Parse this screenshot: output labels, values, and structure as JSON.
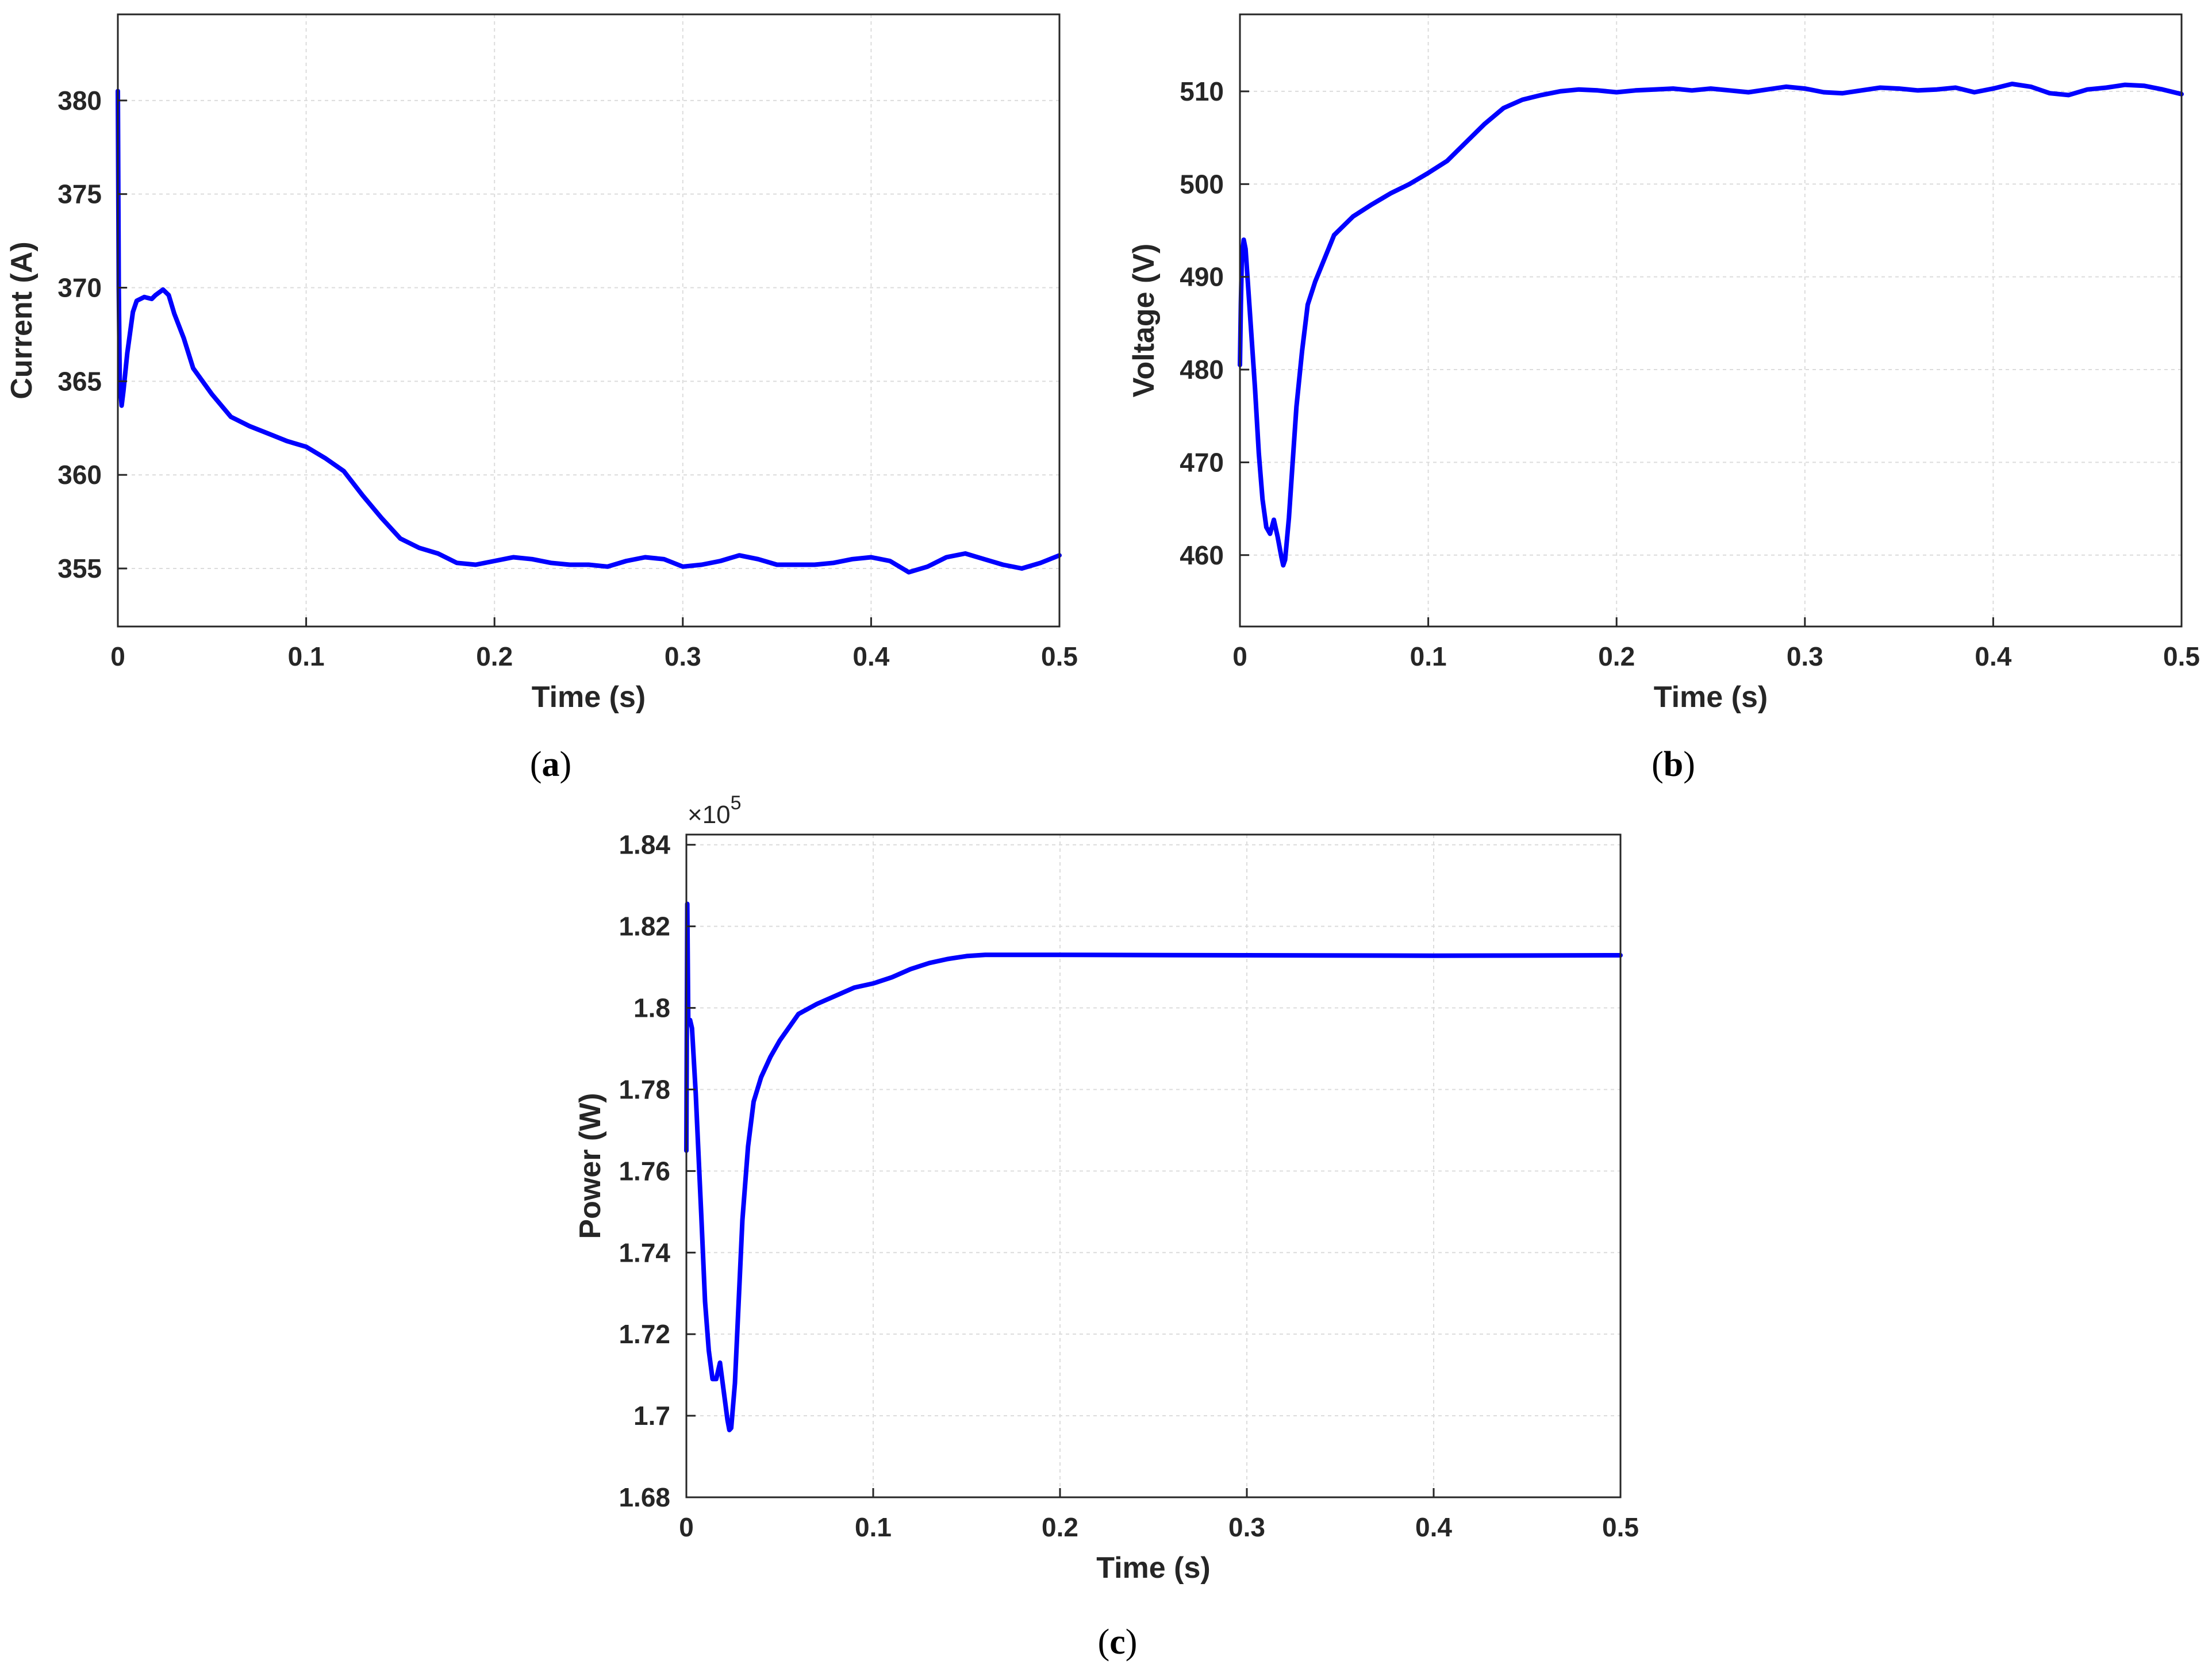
{
  "colors": {
    "line": "#0000FF",
    "axis": "#262626",
    "grid": "#DCDCDC"
  },
  "chart_data": [
    {
      "type": "line",
      "caption": {
        "open": "(",
        "letter": "a",
        "close": ")"
      },
      "xlabel": "Time (s)",
      "ylabel": "Current (A)",
      "xlim": [
        0,
        0.5
      ],
      "ylim": [
        351.9,
        384.6
      ],
      "grid": true,
      "xticks": [
        0,
        0.1,
        0.2,
        0.3,
        0.4,
        0.5
      ],
      "xtick_labels": [
        "0",
        "0.1",
        "0.2",
        "0.3",
        "0.4",
        "0.5"
      ],
      "yticks": [
        355,
        360,
        365,
        370,
        375,
        380
      ],
      "ytick_labels": [
        "355",
        "360",
        "365",
        "370",
        "375",
        "380"
      ],
      "series": [
        {
          "x": [
            0,
            0.0005,
            0.001,
            0.002,
            0.003,
            0.005,
            0.008,
            0.01,
            0.014,
            0.018,
            0.02,
            0.024,
            0.027,
            0.03,
            0.035,
            0.04,
            0.05,
            0.06,
            0.07,
            0.08,
            0.09,
            0.1,
            0.11,
            0.12,
            0.13,
            0.14,
            0.15,
            0.16,
            0.17,
            0.18,
            0.19,
            0.2,
            0.21,
            0.22,
            0.23,
            0.24,
            0.25,
            0.26,
            0.27,
            0.28,
            0.29,
            0.3,
            0.31,
            0.32,
            0.33,
            0.34,
            0.35,
            0.36,
            0.37,
            0.38,
            0.39,
            0.4,
            0.41,
            0.42,
            0.43,
            0.44,
            0.45,
            0.46,
            0.47,
            0.48,
            0.49,
            0.5
          ],
          "y": [
            380.5,
            370,
            365,
            363.7,
            364.5,
            366.5,
            368.7,
            369.3,
            369.5,
            369.4,
            369.6,
            369.9,
            369.6,
            368.6,
            367.3,
            365.7,
            364.3,
            363.1,
            362.6,
            362.2,
            361.8,
            361.5,
            360.9,
            360.2,
            358.9,
            357.7,
            356.6,
            356.1,
            355.8,
            355.3,
            355.2,
            355.4,
            355.6,
            355.5,
            355.3,
            355.2,
            355.2,
            355.1,
            355.4,
            355.6,
            355.5,
            355.1,
            355.2,
            355.4,
            355.7,
            355.5,
            355.2,
            355.2,
            355.2,
            355.3,
            355.5,
            355.6,
            355.4,
            354.8,
            355.1,
            355.6,
            355.8,
            355.5,
            355.2,
            355,
            355.3,
            355.7
          ]
        }
      ]
    },
    {
      "type": "line",
      "caption": {
        "open": "(",
        "letter": "b",
        "close": ")"
      },
      "xlabel": "Time (s)",
      "ylabel": "Voltage (V)",
      "xlim": [
        0,
        0.5
      ],
      "ylim": [
        452.3,
        518.3
      ],
      "grid": true,
      "xticks": [
        0,
        0.1,
        0.2,
        0.3,
        0.4,
        0.5
      ],
      "xtick_labels": [
        "0",
        "0.1",
        "0.2",
        "0.3",
        "0.4",
        "0.5"
      ],
      "yticks": [
        460,
        470,
        480,
        490,
        500,
        510
      ],
      "ytick_labels": [
        "460",
        "470",
        "480",
        "490",
        "500",
        "510"
      ],
      "series": [
        {
          "x": [
            0,
            0.0005,
            0.001,
            0.002,
            0.003,
            0.005,
            0.008,
            0.01,
            0.012,
            0.014,
            0.016,
            0.018,
            0.02,
            0.022,
            0.023,
            0.024,
            0.026,
            0.028,
            0.03,
            0.033,
            0.036,
            0.04,
            0.045,
            0.05,
            0.06,
            0.07,
            0.08,
            0.09,
            0.1,
            0.11,
            0.12,
            0.13,
            0.14,
            0.15,
            0.16,
            0.17,
            0.18,
            0.19,
            0.2,
            0.21,
            0.22,
            0.23,
            0.24,
            0.25,
            0.26,
            0.27,
            0.28,
            0.29,
            0.3,
            0.31,
            0.32,
            0.33,
            0.34,
            0.35,
            0.36,
            0.37,
            0.38,
            0.39,
            0.4,
            0.41,
            0.42,
            0.43,
            0.44,
            0.45,
            0.46,
            0.47,
            0.48,
            0.49,
            0.5
          ],
          "y": [
            480.5,
            487,
            492,
            494,
            493,
            487,
            478,
            471,
            466,
            463,
            462.3,
            463.8,
            462,
            459.8,
            458.9,
            459.5,
            464,
            470,
            476,
            482,
            487,
            489.5,
            492,
            494.5,
            496.5,
            497.8,
            499,
            500,
            501.2,
            502.5,
            504.5,
            506.5,
            508.2,
            509.1,
            509.6,
            510,
            510.2,
            510.1,
            509.9,
            510.1,
            510.2,
            510.3,
            510.1,
            510.3,
            510.1,
            509.9,
            510.2,
            510.5,
            510.3,
            509.9,
            509.8,
            510.1,
            510.4,
            510.3,
            510.1,
            510.2,
            510.4,
            509.9,
            510.3,
            510.8,
            510.5,
            509.8,
            509.6,
            510.2,
            510.4,
            510.7,
            510.6,
            510.2,
            509.7
          ]
        }
      ]
    },
    {
      "type": "line",
      "caption": {
        "open": "(",
        "letter": "c",
        "close": ")"
      },
      "xlabel": "Time (s)",
      "ylabel": "Power (W)",
      "exponent": {
        "base": "×10",
        "power": "5"
      },
      "xlim": [
        0,
        0.5
      ],
      "ylim": [
        1.68,
        1.8425
      ],
      "grid": true,
      "xticks": [
        0,
        0.1,
        0.2,
        0.3,
        0.4,
        0.5
      ],
      "xtick_labels": [
        "0",
        "0.1",
        "0.2",
        "0.3",
        "0.4",
        "0.5"
      ],
      "yticks": [
        1.68,
        1.7,
        1.72,
        1.74,
        1.76,
        1.78,
        1.8,
        1.82,
        1.84
      ],
      "ytick_labels": [
        "1.68",
        "1.7",
        "1.72",
        "1.74",
        "1.76",
        "1.78",
        "1.8",
        "1.82",
        "1.84"
      ],
      "series": [
        {
          "x": [
            0,
            0.0005,
            0.001,
            0.002,
            0.003,
            0.005,
            0.008,
            0.01,
            0.012,
            0.014,
            0.016,
            0.018,
            0.02,
            0.022,
            0.023,
            0.024,
            0.026,
            0.028,
            0.03,
            0.033,
            0.036,
            0.04,
            0.045,
            0.05,
            0.06,
            0.07,
            0.08,
            0.09,
            0.1,
            0.11,
            0.12,
            0.13,
            0.14,
            0.15,
            0.16,
            0.2,
            0.3,
            0.4,
            0.5
          ],
          "y": [
            1.765,
            1.8255,
            1.797,
            1.797,
            1.795,
            1.779,
            1.749,
            1.728,
            1.716,
            1.709,
            1.709,
            1.713,
            1.706,
            1.699,
            1.6965,
            1.697,
            1.708,
            1.728,
            1.748,
            1.766,
            1.777,
            1.783,
            1.788,
            1.792,
            1.7985,
            1.801,
            1.803,
            1.805,
            1.806,
            1.8075,
            1.8095,
            1.811,
            1.812,
            1.8127,
            1.813,
            1.813,
            1.8129,
            1.8128,
            1.8129
          ]
        }
      ]
    }
  ]
}
